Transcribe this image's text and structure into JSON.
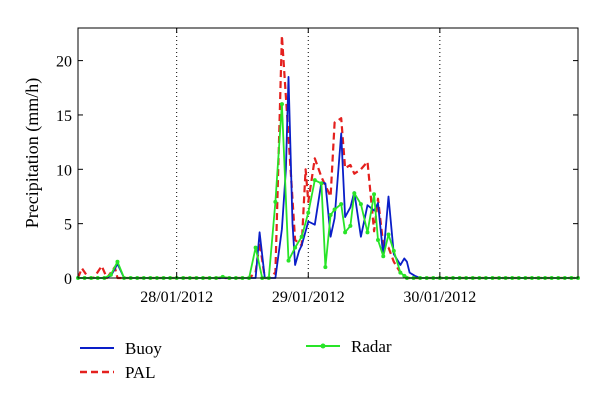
{
  "chart_data": {
    "type": "line",
    "title": "",
    "xlabel": "",
    "ylabel": "Precipitation (mm/h)",
    "xlim": [
      0,
      3.8
    ],
    "ylim": [
      0,
      23
    ],
    "yticks": [
      0,
      5,
      10,
      15,
      20
    ],
    "xticks": [
      {
        "x": 0.75,
        "label": "28/01/2012"
      },
      {
        "x": 1.75,
        "label": "29/01/2012"
      },
      {
        "x": 2.75,
        "label": "30/01/2012"
      }
    ],
    "grid": "dotted, x ticks only",
    "legend_position": "below chart",
    "series": [
      {
        "name": "Buoy",
        "color": "#0a1ec8",
        "style": "solid",
        "x": [
          0.0,
          0.05,
          0.1,
          0.15,
          0.2,
          0.25,
          0.3,
          0.35,
          0.4,
          0.45,
          0.5,
          0.55,
          0.6,
          0.65,
          0.7,
          0.75,
          0.8,
          0.85,
          0.9,
          0.95,
          1.0,
          1.05,
          1.1,
          1.15,
          1.2,
          1.25,
          1.3,
          1.35,
          1.38,
          1.42,
          1.45,
          1.5,
          1.55,
          1.58,
          1.6,
          1.63,
          1.65,
          1.68,
          1.7,
          1.75,
          1.8,
          1.85,
          1.88,
          1.92,
          1.95,
          2.0,
          2.03,
          2.07,
          2.1,
          2.15,
          2.2,
          2.25,
          2.28,
          2.32,
          2.36,
          2.4,
          2.45,
          2.48,
          2.5,
          2.52,
          2.56,
          2.6,
          2.63,
          2.66,
          2.7,
          2.75,
          2.8,
          2.85,
          2.9,
          2.95,
          3.0,
          3.05,
          3.1,
          3.15,
          3.2,
          3.25,
          3.3,
          3.35,
          3.4,
          3.45,
          3.5,
          3.55,
          3.6,
          3.65,
          3.7,
          3.75,
          3.8
        ],
        "values": [
          0,
          0,
          0,
          0,
          0,
          0.2,
          1.3,
          0,
          0,
          0,
          0,
          0,
          0,
          0,
          0,
          0,
          0,
          0,
          0,
          0,
          0,
          0,
          0,
          0,
          0,
          0,
          0,
          0,
          4.2,
          0,
          0,
          0,
          4.5,
          10,
          18.5,
          5,
          1.2,
          2.5,
          3.0,
          5.2,
          4.9,
          8.8,
          8.7,
          3.8,
          5.5,
          13.3,
          5.6,
          6.5,
          7.9,
          3.8,
          6.7,
          6.2,
          6.9,
          2.0,
          7.5,
          2.2,
          1.2,
          1.8,
          1.5,
          0.5,
          0.2,
          0,
          0,
          0,
          0,
          0,
          0,
          0,
          0,
          0,
          0,
          0,
          0,
          0,
          0,
          0,
          0,
          0,
          0,
          0,
          0,
          0,
          0,
          0,
          0,
          0,
          0
        ]
      },
      {
        "name": "PAL",
        "color": "#e4201e",
        "style": "dashed",
        "x": [
          0.0,
          0.03,
          0.08,
          0.12,
          0.18,
          0.22,
          0.28,
          0.3,
          0.35,
          0.4,
          0.45,
          0.5,
          0.55,
          0.6,
          0.65,
          0.7,
          0.75,
          0.8,
          0.85,
          0.9,
          0.95,
          1.0,
          1.05,
          1.1,
          1.15,
          1.2,
          1.25,
          1.3,
          1.35,
          1.38,
          1.42,
          1.45,
          1.5,
          1.55,
          1.6,
          1.65,
          1.7,
          1.73,
          1.75,
          1.8,
          1.85,
          1.88,
          1.92,
          1.95,
          2.0,
          2.03,
          2.07,
          2.1,
          2.15,
          2.2,
          2.25,
          2.28,
          2.32,
          2.36,
          2.4,
          2.45,
          2.48,
          2.5,
          2.52,
          2.56,
          2.6,
          2.65,
          2.7,
          2.75,
          2.8,
          2.85,
          2.9,
          2.95,
          3.0,
          3.05,
          3.1,
          3.15,
          3.2,
          3.25,
          3.3,
          3.35,
          3.4,
          3.45,
          3.5,
          3.55,
          3.6,
          3.65,
          3.7,
          3.75,
          3.8
        ],
        "values": [
          0,
          0.9,
          0,
          0,
          1.1,
          0,
          1.0,
          0,
          0,
          0,
          0,
          0,
          0,
          0,
          0,
          0,
          0,
          0,
          0,
          0,
          0,
          0,
          0,
          0,
          0,
          0,
          0,
          0,
          0.5,
          3.3,
          0,
          0,
          0.5,
          22.3,
          13,
          3.5,
          3,
          10,
          7,
          11,
          9.3,
          8.5,
          7.5,
          14.3,
          14.7,
          10.1,
          10.4,
          9.6,
          10,
          10.7,
          4.3,
          7.3,
          3.0,
          2.8,
          1.5,
          0.5,
          0.3,
          0,
          0,
          0,
          0,
          0,
          0,
          0,
          0,
          0,
          0,
          0,
          0,
          0,
          0,
          0,
          0,
          0,
          0,
          0,
          0,
          0,
          0,
          0,
          0,
          0,
          0,
          0,
          0
        ]
      },
      {
        "name": "Radar",
        "color": "#28e428",
        "style": "solid-with-dots",
        "x": [
          0.0,
          0.05,
          0.1,
          0.15,
          0.2,
          0.25,
          0.3,
          0.35,
          0.4,
          0.45,
          0.5,
          0.55,
          0.6,
          0.65,
          0.7,
          0.75,
          0.8,
          0.85,
          0.9,
          0.95,
          1.0,
          1.05,
          1.1,
          1.15,
          1.2,
          1.25,
          1.3,
          1.35,
          1.4,
          1.45,
          1.5,
          1.55,
          1.6,
          1.65,
          1.7,
          1.75,
          1.8,
          1.85,
          1.88,
          1.92,
          1.95,
          2.0,
          2.03,
          2.07,
          2.1,
          2.15,
          2.2,
          2.25,
          2.28,
          2.32,
          2.36,
          2.4,
          2.45,
          2.48,
          2.5,
          2.55,
          2.6,
          2.65,
          2.7,
          2.75,
          2.8,
          2.85,
          2.9,
          2.95,
          3.0,
          3.05,
          3.1,
          3.15,
          3.2,
          3.25,
          3.3,
          3.35,
          3.4,
          3.45,
          3.5,
          3.55,
          3.6,
          3.65,
          3.7,
          3.75,
          3.8
        ],
        "values": [
          0,
          0,
          0,
          0,
          0,
          0.3,
          1.5,
          0,
          0,
          0,
          0,
          0,
          0,
          0,
          0,
          0,
          0,
          0,
          0,
          0,
          0,
          0,
          0.1,
          0,
          0,
          0,
          0,
          2.8,
          0,
          0,
          7,
          16,
          1.6,
          2.8,
          3.8,
          6.0,
          9,
          8.7,
          1.0,
          5.8,
          6.3,
          6.8,
          4.2,
          4.8,
          7.8,
          6.8,
          4.2,
          7.7,
          3.5,
          2.0,
          4.0,
          2.5,
          0.5,
          0.2,
          0,
          0,
          0,
          0,
          0,
          0,
          0,
          0,
          0,
          0,
          0,
          0,
          0,
          0,
          0,
          0,
          0,
          0,
          0,
          0,
          0,
          0,
          0,
          0,
          0,
          0,
          0
        ]
      }
    ]
  }
}
